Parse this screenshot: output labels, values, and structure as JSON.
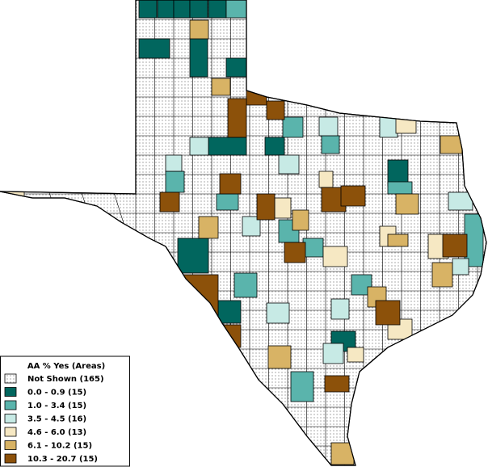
{
  "legend": {
    "title": "AA % Yes (Areas)",
    "items": [
      {
        "label": "Not Shown (165)",
        "color": "#ffffff"
      },
      {
        "label": "0.0 - 0.9 (15)",
        "color": "#01665e"
      },
      {
        "label": "1.0 - 3.4 (15)",
        "color": "#5ab4ac"
      },
      {
        "label": "3.5 - 4.5 (16)",
        "color": "#c7eae5"
      },
      {
        "label": "4.6 - 6.0 (13)",
        "color": "#f6e8c3"
      },
      {
        "label": "6.1 - 10.2 (15)",
        "color": "#d8b365"
      },
      {
        "label": "10.3 - 20.7 (15)",
        "color": "#8c510a"
      }
    ]
  }
}
